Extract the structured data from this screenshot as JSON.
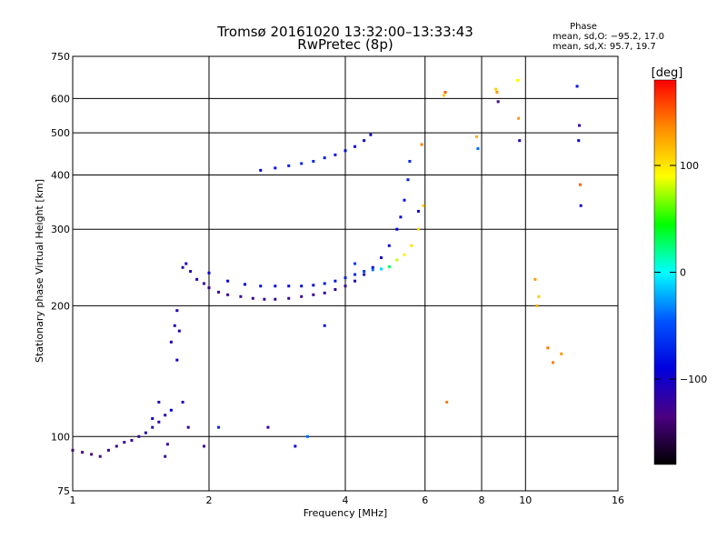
{
  "chart_data": {
    "type": "scatter",
    "title": "Tromsø 20161020 13:32:00–13:33:43",
    "subtitle": "RwPretec (8p)",
    "xlabel": "Frequency [MHz]",
    "ylabel": "Stationary phase Virtual Height [km]",
    "x_scale": "log",
    "y_scale": "log",
    "xlim": [
      1,
      16
    ],
    "ylim": [
      75,
      750
    ],
    "x_ticks": [
      1,
      2,
      4,
      6,
      8,
      10,
      16
    ],
    "x_tick_labels": [
      "1",
      "2",
      "4",
      "6",
      "8",
      "10",
      "16"
    ],
    "y_ticks": [
      75,
      100,
      200,
      300,
      400,
      500,
      600,
      750
    ],
    "y_tick_labels": [
      "75",
      "100",
      "200",
      "300",
      "400",
      "500",
      "600",
      "750"
    ],
    "grid": true,
    "phase_stats": {
      "heading": "Phase",
      "line_o": "mean, sd,O: −95.2, 17.0",
      "line_x": "mean, sd,X:  95.7, 19.7"
    },
    "colorbar": {
      "label": "[deg]",
      "range": [
        -180,
        180
      ],
      "ticks": [
        100,
        0,
        -100
      ],
      "tick_labels": [
        "100",
        "0",
        "−100"
      ],
      "colors": [
        "#ff0000",
        "#ff8c00",
        "#ffff00",
        "#00ff00",
        "#00ffff",
        "#0055ff",
        "#0000dd",
        "#4b0082",
        "#000000"
      ]
    },
    "series": [
      {
        "x": [
          1.0,
          1.05,
          1.1,
          1.15,
          1.2,
          1.25,
          1.3,
          1.35,
          1.4,
          1.45,
          1.5,
          1.55,
          1.6,
          1.62,
          1.65,
          1.68,
          1.7,
          1.72,
          1.75,
          1.78,
          1.82,
          1.88,
          1.95,
          2.0,
          2.1,
          2.2,
          2.35,
          2.5,
          2.65,
          2.8,
          3.0,
          3.2,
          3.4,
          3.6,
          3.8,
          4.0,
          4.2,
          4.4,
          4.6,
          4.8,
          5.0,
          5.2,
          5.3,
          5.4,
          5.5,
          5.55
        ],
        "y": [
          93,
          92,
          91,
          90,
          93,
          95,
          97,
          98,
          100,
          102,
          105,
          108,
          112,
          96,
          165,
          180,
          195,
          175,
          245,
          250,
          240,
          230,
          225,
          220,
          215,
          212,
          210,
          208,
          207,
          207,
          208,
          210,
          212,
          214,
          218,
          222,
          228,
          236,
          245,
          258,
          275,
          300,
          320,
          350,
          390,
          430
        ],
        "phase": [
          -140,
          -135,
          -140,
          -130,
          -130,
          -125,
          -120,
          -125,
          -120,
          -115,
          -115,
          -120,
          -110,
          -120,
          -110,
          -105,
          -105,
          -110,
          -115,
          -110,
          -110,
          -115,
          -120,
          -120,
          -125,
          -125,
          -125,
          -125,
          -125,
          -125,
          -125,
          -125,
          -125,
          -120,
          -120,
          -120,
          -115,
          -110,
          -105,
          -100,
          -95,
          -90,
          -85,
          -80,
          -75,
          -70
        ]
      },
      {
        "x": [
          2.0,
          2.2,
          2.4,
          2.6,
          2.8,
          3.0,
          3.2,
          3.4,
          3.6,
          3.8,
          4.0,
          4.2,
          4.4,
          4.6,
          4.8,
          5.0,
          5.2,
          5.4,
          5.6,
          5.8,
          5.95
        ],
        "y": [
          238,
          228,
          224,
          222,
          222,
          222,
          222,
          223,
          225,
          228,
          232,
          236,
          240,
          242,
          243,
          246,
          255,
          262,
          275,
          300,
          340
        ],
        "phase": [
          -95,
          -90,
          -90,
          -85,
          -85,
          -85,
          -85,
          -85,
          -80,
          -80,
          -75,
          -70,
          -60,
          -40,
          -10,
          30,
          80,
          95,
          100,
          105,
          110
        ]
      },
      {
        "x": [
          2.6,
          2.8,
          3.0,
          3.2,
          3.4,
          3.6,
          3.8,
          4.0,
          4.2,
          4.4,
          4.55
        ],
        "y": [
          410,
          415,
          420,
          425,
          430,
          438,
          445,
          455,
          465,
          480,
          495
        ],
        "phase": [
          -90,
          -80,
          -75,
          -70,
          -70,
          -75,
          -80,
          -85,
          -90,
          -95,
          -100
        ]
      },
      {
        "x": [
          1.5,
          1.55,
          1.6,
          1.65,
          1.7,
          1.75,
          1.8,
          1.95,
          2.1,
          2.7,
          3.1,
          3.3,
          3.6,
          4.2,
          5.8,
          5.9,
          6.6,
          6.65,
          6.7,
          7.8,
          7.85,
          8.6,
          8.65,
          8.7,
          9.6,
          9.65,
          9.7,
          10.5,
          10.6,
          10.7,
          11.2,
          11.5,
          12.0,
          13.0,
          13.1,
          13.15,
          13.2,
          13.25
        ],
        "y": [
          110,
          120,
          90,
          115,
          150,
          120,
          105,
          95,
          105,
          105,
          95,
          100,
          180,
          250,
          330,
          470,
          610,
          620,
          120,
          490,
          460,
          630,
          620,
          590,
          660,
          540,
          480,
          230,
          200,
          210,
          160,
          148,
          155,
          640,
          480,
          520,
          380,
          340
        ],
        "phase": [
          -100,
          -110,
          -120,
          -90,
          -100,
          -110,
          -120,
          -130,
          -70,
          -120,
          -90,
          -40,
          -80,
          -60,
          -100,
          140,
          110,
          150,
          140,
          120,
          -40,
          110,
          130,
          -130,
          90,
          130,
          -110,
          130,
          120,
          110,
          140,
          140,
          130,
          -80,
          -90,
          -120,
          150,
          -100
        ]
      }
    ]
  }
}
